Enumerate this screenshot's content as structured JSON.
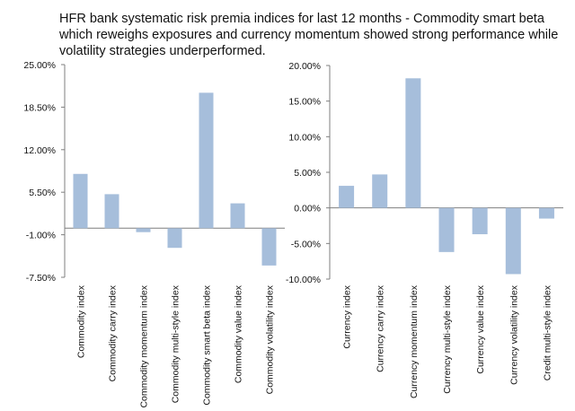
{
  "title": "HFR bank systematic risk premia indices for last 12 months - Commodity smart beta which reweighs exposures and currency momentum showed strong performance while volatility strategies underperformed.",
  "colors": {
    "bar": "#a6bedb",
    "axis": "#7f7f7f",
    "grid": "#7f7f7f"
  },
  "chart_data": [
    {
      "type": "bar",
      "categories": [
        "Commodity index",
        "Commodity carry index",
        "Commodity momentum  index",
        "Commodity multi-style index",
        "Commodity smart beta index",
        "Commodity value index",
        "Commodity volatility index"
      ],
      "values": [
        8.3,
        5.2,
        -0.6,
        -3.0,
        20.7,
        3.8,
        -5.7
      ],
      "yticks": [
        "25.00%",
        "18.50%",
        "12.00%",
        "5.50%",
        "-1.00%",
        "-7.50%"
      ],
      "ytick_values": [
        25,
        18.5,
        12,
        5.5,
        -1,
        -7.5
      ],
      "ylim": [
        -7.5,
        25
      ],
      "grid": false
    },
    {
      "type": "bar",
      "categories": [
        "Currency index",
        "Currency carry index",
        "Currency momentum index",
        "Currency multi-style index",
        "Currency value index",
        "Currency volatility index",
        "Credit multi-style index"
      ],
      "values": [
        3.1,
        4.7,
        18.2,
        -6.2,
        -3.7,
        -9.3,
        -1.5
      ],
      "yticks": [
        "20.00%",
        "15.00%",
        "10.00%",
        "5.00%",
        "0.00%",
        "-5.00%",
        "-10.00%"
      ],
      "ytick_values": [
        20,
        15,
        10,
        5,
        0,
        -5,
        -10
      ],
      "ylim": [
        -10,
        20
      ],
      "grid": false
    }
  ]
}
